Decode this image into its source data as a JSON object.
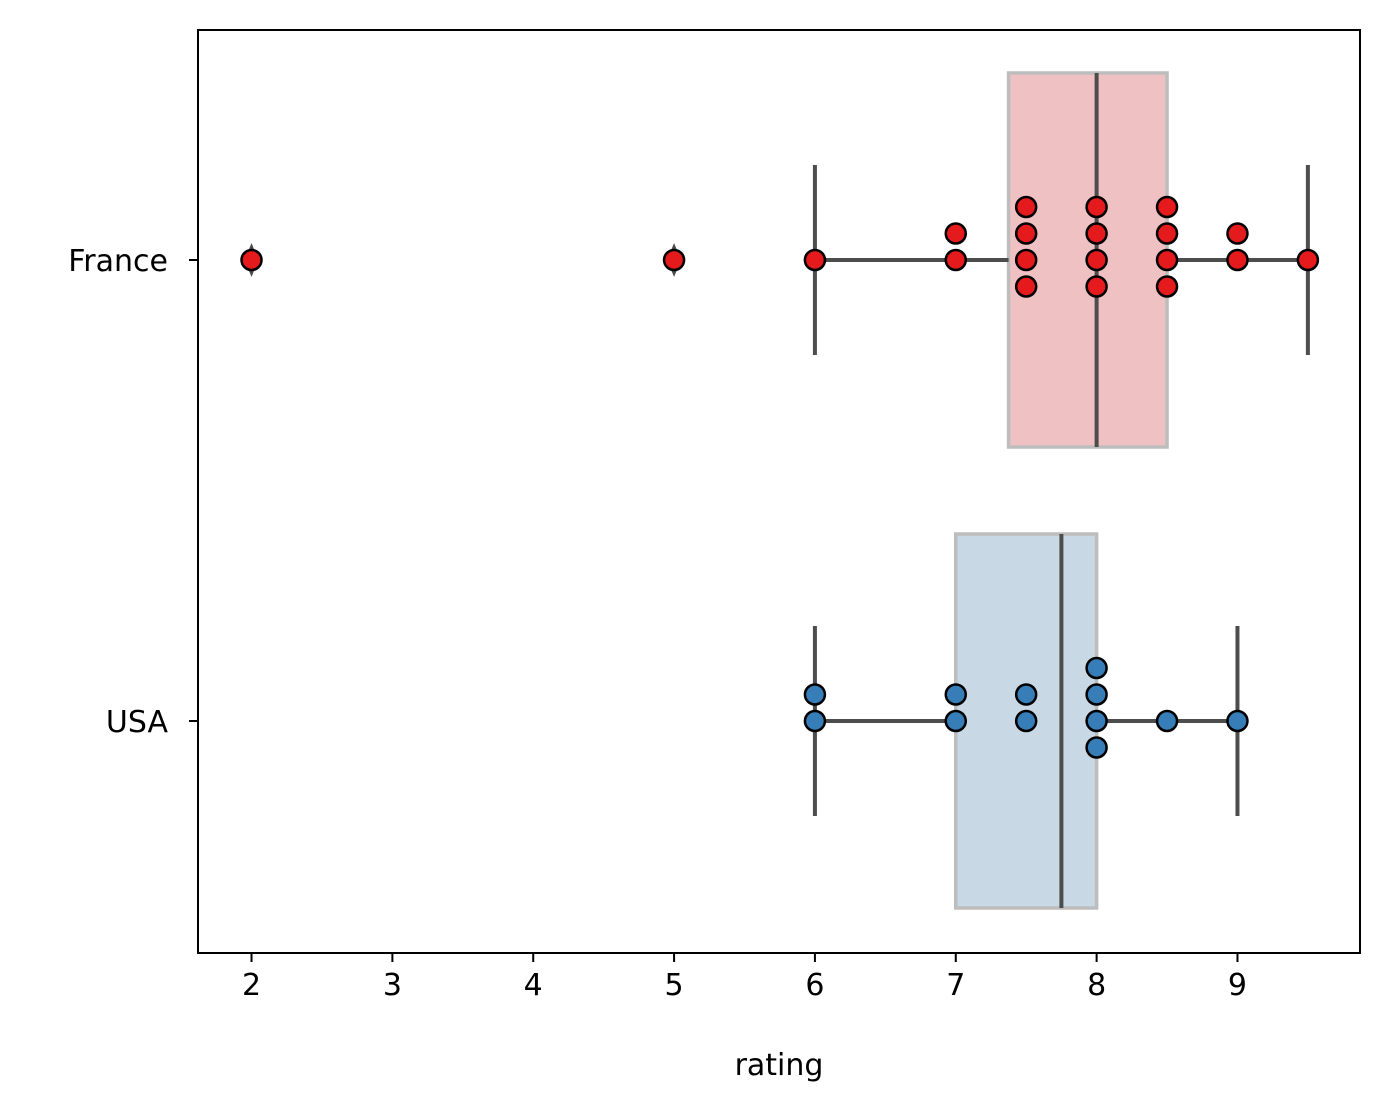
{
  "chart_data": {
    "type": "box-swarm",
    "orientation": "horizontal",
    "title": "",
    "xlabel": "rating",
    "ylabel": "",
    "xlim": [
      1.62,
      9.87
    ],
    "xticks": [
      2,
      3,
      4,
      5,
      6,
      7,
      8,
      9
    ],
    "categories": [
      "France",
      "USA"
    ],
    "legend": "none",
    "grid": false,
    "series": [
      {
        "name": "France",
        "box_color": "#f0c1c3",
        "point_color": "#e41a1c",
        "q1": 7.375,
        "median": 8.0,
        "q3": 8.5,
        "whisker_low": 6.0,
        "whisker_high": 9.5,
        "outliers": [
          2.0,
          5.0
        ],
        "points": [
          2.0,
          5.0,
          6.0,
          7.0,
          7.0,
          7.5,
          7.5,
          7.5,
          7.5,
          8.0,
          8.0,
          8.0,
          8.0,
          8.5,
          8.5,
          8.5,
          8.5,
          9.0,
          9.0,
          9.5
        ]
      },
      {
        "name": "USA",
        "box_color": "#c8d8e5",
        "point_color": "#377eb8",
        "q1": 7.0,
        "median": 7.75,
        "q3": 8.0,
        "whisker_low": 6.0,
        "whisker_high": 9.0,
        "outliers": [],
        "points": [
          6.0,
          6.0,
          7.0,
          7.0,
          7.5,
          7.5,
          8.0,
          8.0,
          8.0,
          8.0,
          8.5,
          9.0
        ]
      }
    ]
  }
}
